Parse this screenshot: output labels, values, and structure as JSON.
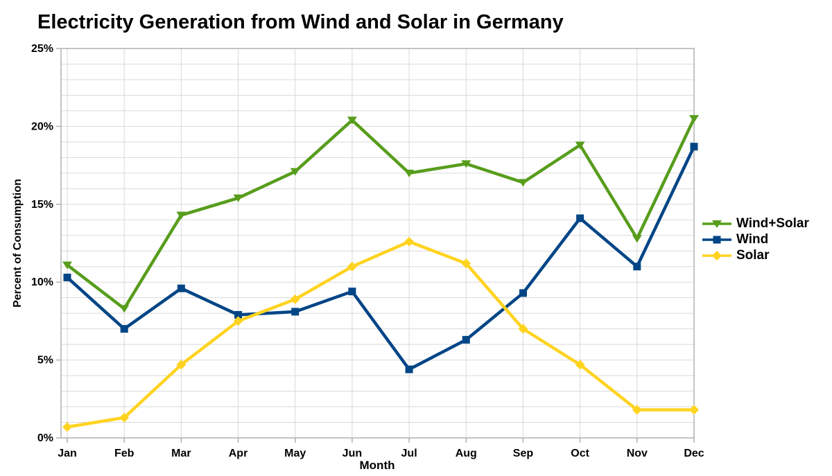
{
  "title": "Electricity Generation from Wind and Solar in Germany",
  "chart_data": {
    "type": "line",
    "title": "Electricity Generation from Wind and Solar in Germany",
    "xlabel": "Month",
    "ylabel": "Percent of Consumption",
    "categories": [
      "Jan",
      "Feb",
      "Mar",
      "Apr",
      "May",
      "Jun",
      "Jul",
      "Aug",
      "Sep",
      "Oct",
      "Nov",
      "Dec"
    ],
    "series": [
      {
        "name": "Wind+Solar",
        "color": "#579D1C",
        "marker": "triangle-down",
        "values": [
          11.1,
          8.3,
          14.3,
          15.4,
          17.1,
          20.4,
          17.0,
          17.6,
          16.4,
          18.8,
          12.8,
          20.5
        ]
      },
      {
        "name": "Wind",
        "color": "#004586",
        "marker": "square",
        "values": [
          10.3,
          7.0,
          9.6,
          7.9,
          8.1,
          9.4,
          4.4,
          6.3,
          9.3,
          14.1,
          11.0,
          18.7
        ]
      },
      {
        "name": "Solar",
        "color": "#FFD320",
        "marker": "diamond",
        "values": [
          0.7,
          1.3,
          4.7,
          7.5,
          8.9,
          11.0,
          12.6,
          11.2,
          7.0,
          4.7,
          1.8,
          1.8
        ]
      }
    ],
    "ylim": [
      0,
      25
    ],
    "ytick_major": 5,
    "ytick_minor": 1,
    "ytick_suffix": "%",
    "grid": "on",
    "legend_position": "right"
  },
  "colors": {
    "grid": "#d9d9d9",
    "axis": "#b0b0b0",
    "text": "#000000",
    "background": "#ffffff"
  }
}
